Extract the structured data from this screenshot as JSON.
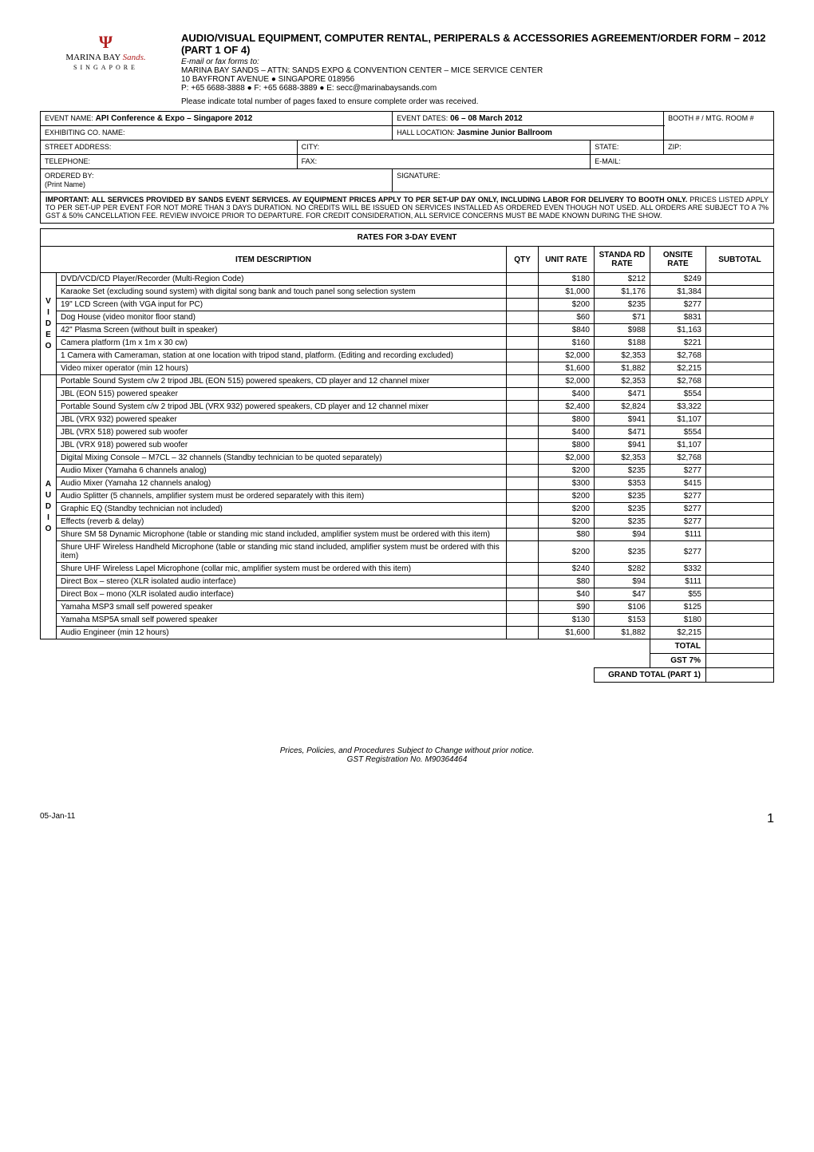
{
  "header": {
    "logo_line1": "MARINA BAY",
    "logo_sands": "Sands",
    "logo_sub": "SINGAPORE",
    "title": "AUDIO/VISUAL EQUIPMENT, COMPUTER RENTAL, PERIPERALS & ACCESSORIES AGREEMENT/ORDER FORM – 2012    (PART 1 OF 4)",
    "email_fax": "E-mail or fax forms to:",
    "addr1": "MARINA BAY SANDS – ATTN: SANDS EXPO & CONVENTION CENTER – MICE SERVICE CENTER",
    "addr2": "10 BAYFRONT AVENUE ● SINGAPORE 018956",
    "contact": "P: +65 6688-3888  ●  F: +65 6688-3889  ●  E: secc@marinabaysands.com",
    "fax_note": "Please indicate total number of pages faxed to ensure complete order was received."
  },
  "form": {
    "event_name_label": "EVENT NAME:",
    "event_name": "API Conference & Expo – Singapore 2012",
    "event_dates_label": "EVENT DATES:",
    "event_dates": "06 – 08 March 2012",
    "booth_label": "BOOTH # / MTG. ROOM #",
    "exhibiting_label": "EXHIBITING CO. NAME:",
    "hall_label": "HALL LOCATION:",
    "hall": "Jasmine Junior Ballroom",
    "street_label": "STREET ADDRESS:",
    "city_label": "CITY:",
    "state_label": "STATE:",
    "zip_label": "ZIP:",
    "tel_label": "TELEPHONE:",
    "fax_label": "FAX:",
    "email_label": "E-MAIL:",
    "ordered_by_label": "ORDERED BY:",
    "print_name": "(Print Name)",
    "sig_label": "SIGNATURE:"
  },
  "important": {
    "prefix": "IMPORTANT:   ALL SERVICES PROVIDED BY SANDS EVENT SERVICES. AV EQUIPMENT PRICES APPLY TO PER SET-UP DAY ONLY, INCLUDING LABOR FOR DELIVERY TO BOOTH ONLY.",
    "rest": " PRICES LISTED APPLY TO PER SET-UP PER EVENT FOR NOT MORE THAN 3 DAYS DURATION. NO CREDITS WILL BE ISSUED ON SERVICES INSTALLED AS ORDERED EVEN THOUGH NOT USED.    ALL ORDERS ARE SUBJECT TO A 7% GST & 50% CANCELLATION FEE.  REVIEW INVOICE PRIOR TO DEPARTURE.  FOR CREDIT CONSIDERATION, ALL SERVICE CONCERNS MUST BE MADE KNOWN DURING THE SHOW."
  },
  "rates_title": "RATES FOR 3-DAY EVENT",
  "columns": {
    "item": "ITEM DESCRIPTION",
    "qty": "QTY",
    "unit": "UNIT RATE",
    "standard": "STANDA RD RATE",
    "onsite": "ONSITE RATE",
    "subtotal": "SUBTOTAL"
  },
  "video_cat": "V\nI\nD\nE\nO",
  "video_items": [
    {
      "desc": "DVD/VCD/CD Player/Recorder (Multi-Region Code)",
      "unit": "$180",
      "std": "$212",
      "on": "$249"
    },
    {
      "desc": "Karaoke Set (excluding sound system) with digital song bank and touch panel song selection system",
      "unit": "$1,000",
      "std": "$1,176",
      "on": "$1,384"
    },
    {
      "desc": "19\" LCD Screen (with VGA input for PC)",
      "unit": "$200",
      "std": "$235",
      "on": "$277"
    },
    {
      "desc": "Dog House (video monitor floor stand)",
      "unit": "$60",
      "std": "$71",
      "on": "$831"
    },
    {
      "desc": "42\" Plasma Screen (without built in speaker)",
      "unit": "$840",
      "std": "$988",
      "on": "$1,163"
    },
    {
      "desc": "Camera platform (1m x 1m x 30 cw)",
      "unit": "$160",
      "std": "$188",
      "on": "$221"
    },
    {
      "desc": "1 Camera with Cameraman, station at one location with tripod stand, platform. (Editing and recording excluded)",
      "unit": "$2,000",
      "std": "$2,353",
      "on": "$2,768"
    },
    {
      "desc": "Video mixer operator (min 12 hours)",
      "unit": "$1,600",
      "std": "$1,882",
      "on": "$2,215"
    }
  ],
  "audio_cat": "A\nU\nD\nI\nO",
  "audio_items": [
    {
      "desc": "Portable Sound System c/w 2 tripod JBL (EON 515) powered speakers, CD player and 12 channel mixer",
      "unit": "$2,000",
      "std": "$2,353",
      "on": "$2,768"
    },
    {
      "desc": "JBL (EON 515) powered speaker",
      "unit": "$400",
      "std": "$471",
      "on": "$554"
    },
    {
      "desc": "Portable Sound System c/w 2 tripod JBL (VRX 932) powered speakers, CD player and 12 channel mixer",
      "unit": "$2,400",
      "std": "$2,824",
      "on": "$3,322"
    },
    {
      "desc": "JBL (VRX 932) powered speaker",
      "unit": "$800",
      "std": "$941",
      "on": "$1,107"
    },
    {
      "desc": "JBL (VRX 518) powered sub woofer",
      "unit": "$400",
      "std": "$471",
      "on": "$554"
    },
    {
      "desc": "JBL (VRX 918) powered sub woofer",
      "unit": "$800",
      "std": "$941",
      "on": "$1,107"
    },
    {
      "desc": "Digital Mixing Console – M7CL – 32 channels (Standby technician to be quoted separately)",
      "unit": "$2,000",
      "std": "$2,353",
      "on": "$2,768"
    },
    {
      "desc": "Audio Mixer (Yamaha 6 channels analog)",
      "unit": "$200",
      "std": "$235",
      "on": "$277"
    },
    {
      "desc": "Audio Mixer (Yamaha 12 channels analog)",
      "unit": "$300",
      "std": "$353",
      "on": "$415"
    },
    {
      "desc": "Audio Splitter (5 channels, amplifier system must be ordered separately with this item)",
      "unit": "$200",
      "std": "$235",
      "on": "$277"
    },
    {
      "desc": "Graphic EQ (Standby technician not included)",
      "unit": "$200",
      "std": "$235",
      "on": "$277"
    },
    {
      "desc": "Effects (reverb & delay)",
      "unit": "$200",
      "std": "$235",
      "on": "$277"
    },
    {
      "desc": "Shure SM 58 Dynamic Microphone (table or standing mic stand included, amplifier system must be ordered with this item)",
      "unit": "$80",
      "std": "$94",
      "on": "$111"
    },
    {
      "desc": "Shure UHF Wireless Handheld Microphone (table or standing mic stand included, amplifier system must be ordered with this item)",
      "unit": "$200",
      "std": "$235",
      "on": "$277"
    },
    {
      "desc": "Shure UHF Wireless Lapel Microphone (collar mic, amplifier system must be ordered with this item)",
      "unit": "$240",
      "std": "$282",
      "on": "$332"
    },
    {
      "desc": "Direct Box – stereo (XLR isolated audio interface)",
      "unit": "$80",
      "std": "$94",
      "on": "$111"
    },
    {
      "desc": "Direct Box – mono (XLR isolated audio interface)",
      "unit": "$40",
      "std": "$47",
      "on": "$55"
    },
    {
      "desc": "Yamaha MSP3 small self powered speaker",
      "unit": "$90",
      "std": "$106",
      "on": "$125"
    },
    {
      "desc": "Yamaha MSP5A small self powered speaker",
      "unit": "$130",
      "std": "$153",
      "on": "$180"
    },
    {
      "desc": "Audio Engineer (min 12 hours)",
      "unit": "$1,600",
      "std": "$1,882",
      "on": "$2,215"
    }
  ],
  "totals": {
    "total": "TOTAL",
    "gst": "GST 7%",
    "grand": "GRAND TOTAL (PART 1)"
  },
  "footer": {
    "line1": "Prices, Policies, and Procedures Subject to Change without prior notice.",
    "line2": "GST Registration No. M90364464",
    "date": "05-Jan-11",
    "page": "1"
  }
}
